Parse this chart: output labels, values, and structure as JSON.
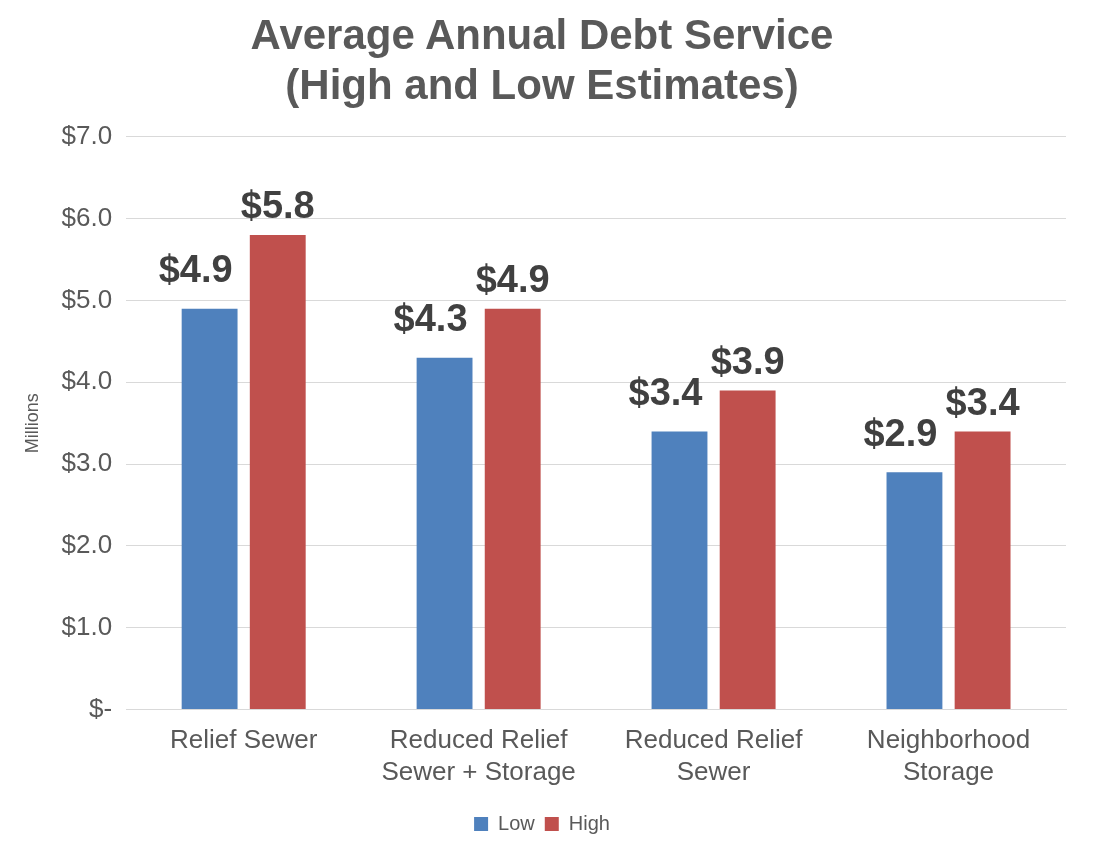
{
  "chart_data": {
    "type": "bar",
    "title": "Average Annual Debt Service (High and Low Estimates)",
    "ylabel": "Millions",
    "categories": [
      "Relief Sewer",
      "Reduced Relief Sewer + Storage",
      "Reduced Relief Sewer",
      "Neighborhood Storage"
    ],
    "series": [
      {
        "name": "Low",
        "color": "#4f81bd",
        "values": [
          4.9,
          4.3,
          3.4,
          2.9
        ],
        "value_labels": [
          "$4.9",
          "$4.3",
          "$3.4",
          "$2.9"
        ]
      },
      {
        "name": "High",
        "color": "#c0504d",
        "values": [
          5.8,
          4.9,
          3.9,
          3.4
        ],
        "value_labels": [
          "$5.8",
          "$4.9",
          "$3.9",
          "$3.4"
        ]
      }
    ],
    "ylim": [
      0,
      7
    ],
    "yticks": [
      {
        "value": 0,
        "label": "$-"
      },
      {
        "value": 1,
        "label": "$1.0"
      },
      {
        "value": 2,
        "label": "$2.0"
      },
      {
        "value": 3,
        "label": "$3.0"
      },
      {
        "value": 4,
        "label": "$4.0"
      },
      {
        "value": 5,
        "label": "$5.0"
      },
      {
        "value": 6,
        "label": "$6.0"
      },
      {
        "value": 7,
        "label": "$7.0"
      }
    ],
    "grid": "y",
    "legend": "bottom"
  }
}
